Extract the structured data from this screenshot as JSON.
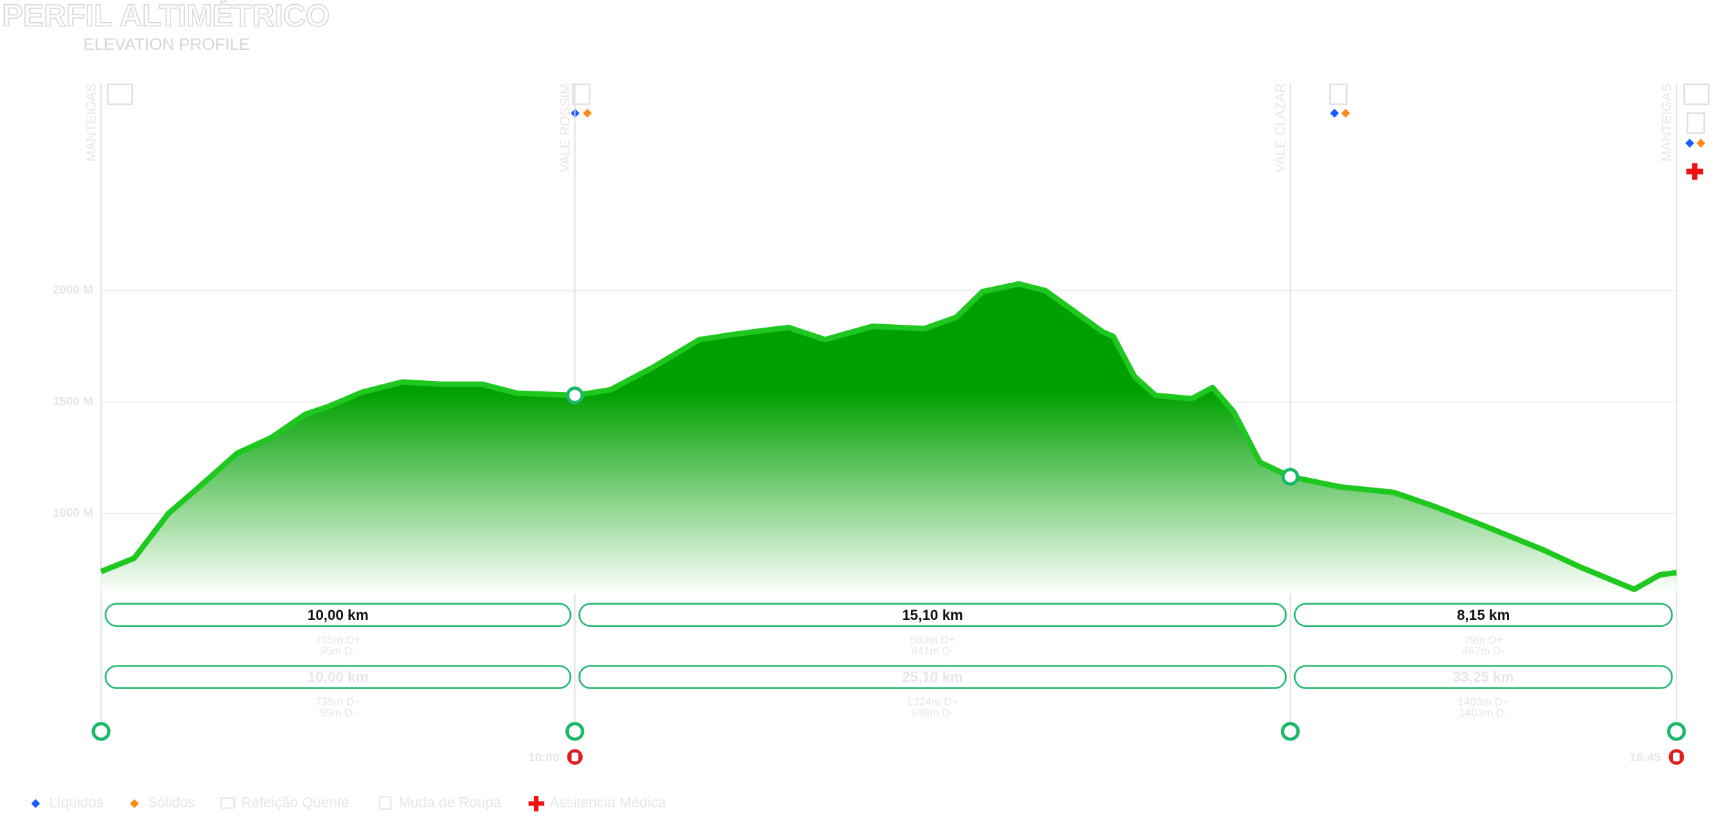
{
  "chart_data": {
    "type": "area",
    "title": "PERFIL ALTIMÉTRICO",
    "subtitle": "ELEVATION PROFILE",
    "x": [
      0,
      0.7,
      1.42,
      2.02,
      2.87,
      3.59,
      4.31,
      4.8,
      5.52,
      6.36,
      7.2,
      8.05,
      8.77,
      10,
      10.75,
      11.64,
      12.63,
      13.4,
      14.51,
      15.28,
      16.28,
      17.38,
      18.05,
      18.6,
      19.37,
      19.93,
      21.14,
      21.36,
      21.81,
      22.25,
      23.02,
      23.46,
      23.91,
      24.46,
      25.1,
      26.14,
      27.28,
      28.17,
      29.19,
      30.46,
      31.22,
      32.36,
      32.9,
      33.25
    ],
    "values": [
      740,
      800,
      1000,
      1110,
      1270,
      1340,
      1445,
      1480,
      1545,
      1590,
      1580,
      1580,
      1540,
      1530,
      1555,
      1655,
      1780,
      1805,
      1835,
      1780,
      1840,
      1830,
      1880,
      1995,
      2030,
      2000,
      1815,
      1795,
      1615,
      1530,
      1515,
      1565,
      1455,
      1230,
      1165,
      1120,
      1095,
      1030,
      945,
      835,
      760,
      660,
      725,
      735
    ],
    "color": "#1ec81e",
    "xlim": [
      0,
      33.25
    ],
    "ylim": [
      640,
      2930
    ],
    "yticks": [
      {
        "value": 1000,
        "label": "1000 M"
      },
      {
        "value": 1500,
        "label": "1500 M"
      },
      {
        "value": 2000,
        "label": "2000 M"
      }
    ],
    "grid": true,
    "stations": [
      {
        "name": "MANTEIGAS",
        "km": 0
      },
      {
        "name": "VALE ROSSIM",
        "km": 10,
        "time": "10:00"
      },
      {
        "name": "VALE CLAZAR",
        "km": 25.1
      },
      {
        "name": "MANTEIGAS",
        "km": 33.25,
        "time": "16:45"
      }
    ],
    "segments": [
      {
        "distance": "10,00 km",
        "gain": "735m D+",
        "loss": "95m D-"
      },
      {
        "distance": "15,10 km",
        "gain": "589m D+",
        "loss": "841m D-"
      },
      {
        "distance": "8,15 km",
        "gain": "79m D+",
        "loss": "467m D-"
      }
    ],
    "totals": [
      {
        "distance": "10,00 km",
        "gain": "735m D+",
        "loss": "95m D-"
      },
      {
        "distance": "25,10 km",
        "gain": "1324m D+",
        "loss": "936m D-"
      },
      {
        "distance": "33,25 km",
        "gain": "1403m D+",
        "loss": "1403m D-"
      }
    ],
    "legend": [
      "Líquidos",
      "Sólidos",
      "Refeição Quente",
      "Muda de Roupa",
      "Assitencia Médica"
    ]
  }
}
